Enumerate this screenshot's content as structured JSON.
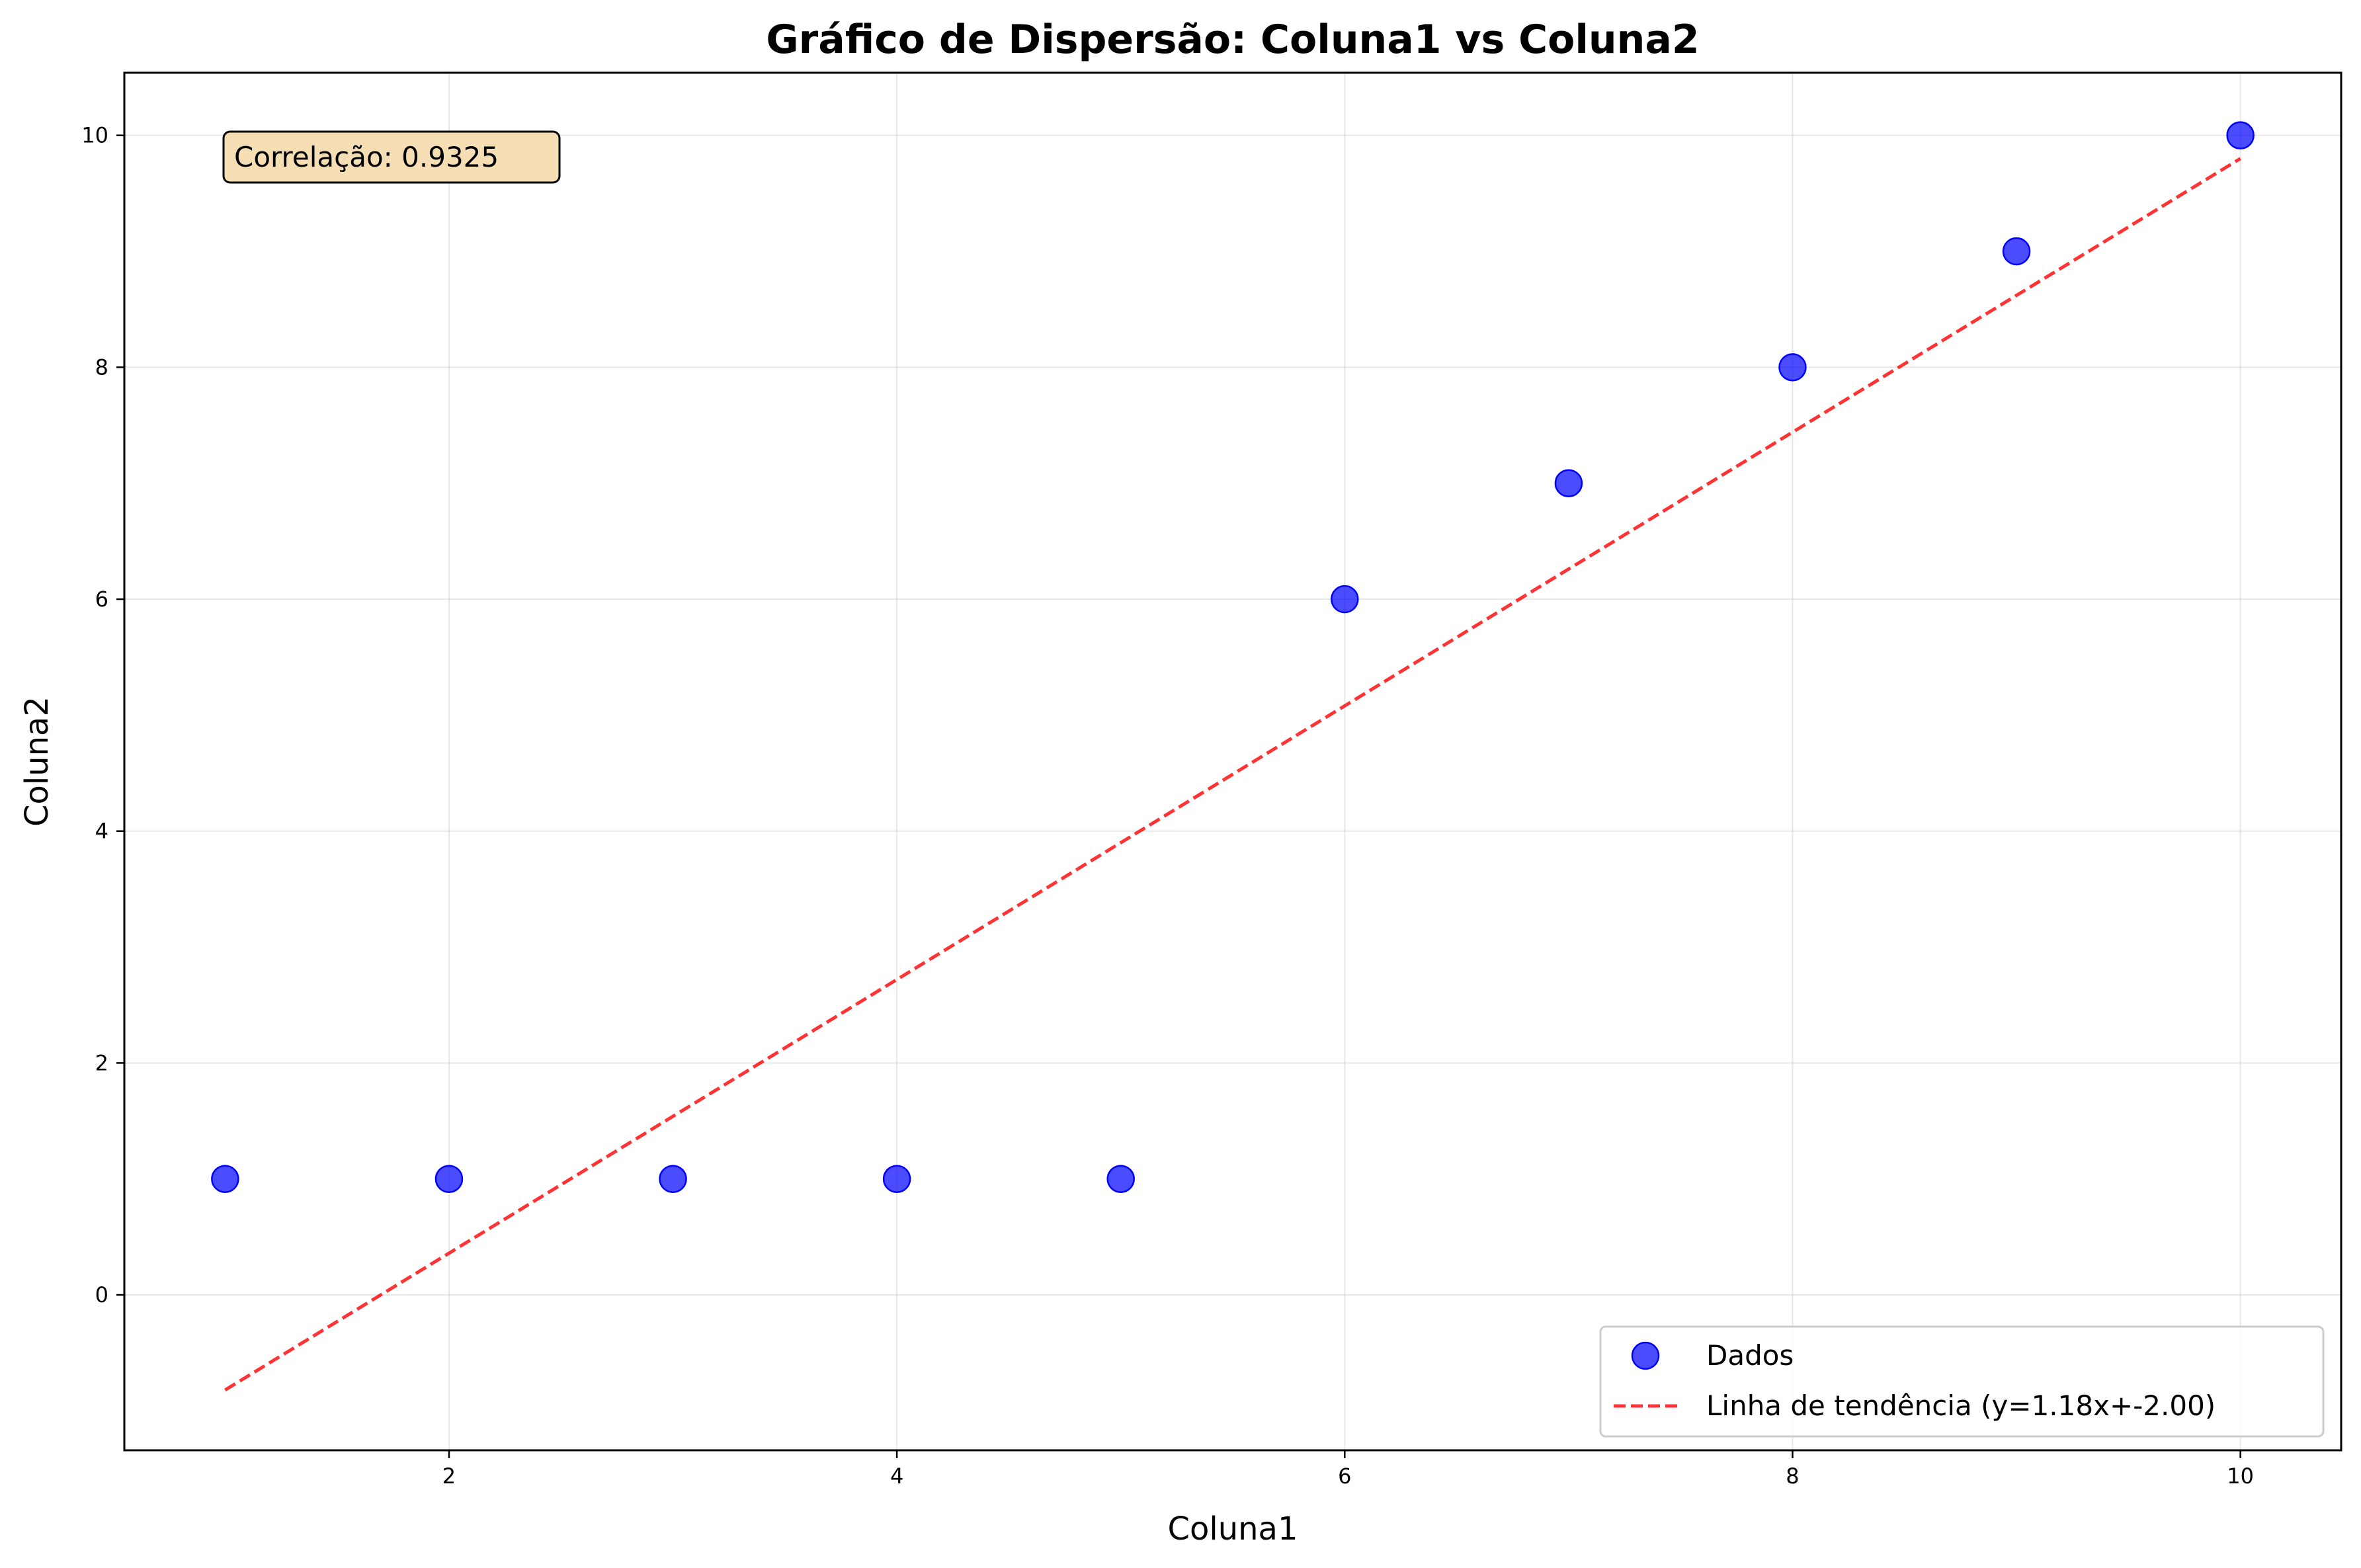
{
  "chart_data": {
    "type": "scatter",
    "title": "Gráfico de Dispersão: Coluna1 vs Coluna2",
    "xlabel": "Coluna1",
    "ylabel": "Coluna2",
    "xlim": [
      0.55,
      10.45
    ],
    "ylim": [
      -1.34,
      10.54
    ],
    "xticks": [
      2,
      4,
      6,
      8,
      10
    ],
    "yticks": [
      0,
      2,
      4,
      6,
      8,
      10
    ],
    "grid": true,
    "legend_position": "lower-right",
    "series": [
      {
        "name": "Dados",
        "kind": "scatter",
        "color": "#0000ff",
        "x": [
          1,
          2,
          3,
          4,
          5,
          6,
          7,
          8,
          9,
          10
        ],
        "y": [
          1,
          1,
          1,
          1,
          1,
          6,
          7,
          8,
          9,
          10
        ]
      },
      {
        "name": "Linha de tendência (y=1.18x+-2.00)",
        "kind": "line",
        "style": "dashed",
        "color": "#ff0000",
        "x": [
          1,
          10
        ],
        "y": [
          -0.82,
          9.8
        ]
      }
    ],
    "annotations": [
      {
        "text": "Correlação: 0.9325",
        "position": "top-left"
      }
    ]
  }
}
